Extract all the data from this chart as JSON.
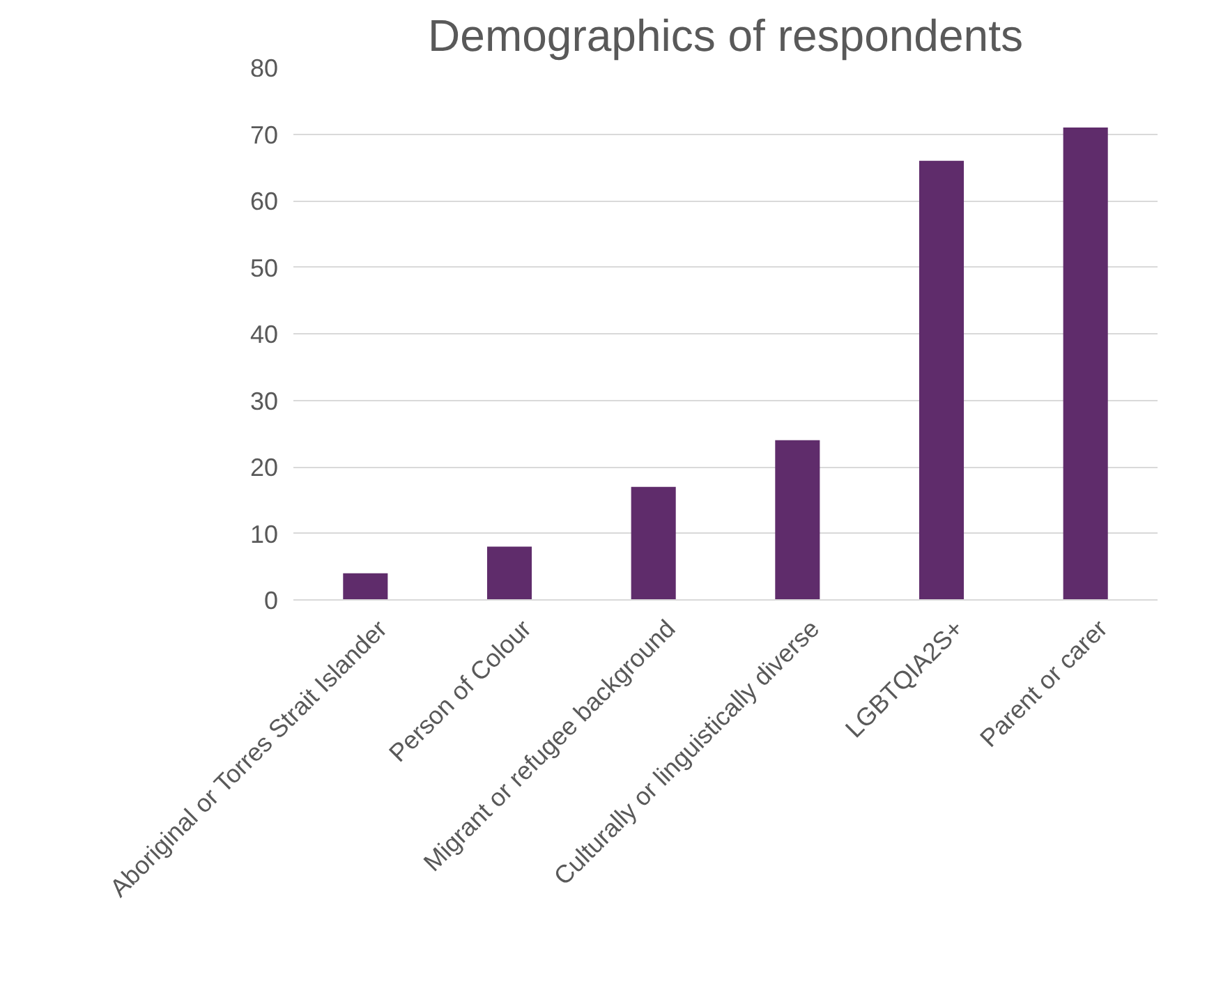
{
  "chart_data": {
    "type": "bar",
    "title": "Demographics of respondents",
    "categories": [
      "Aboriginal or Torres Strait Islander",
      "Person of Colour",
      "Migrant or refugee background",
      "Culturally or linguistically diverse",
      "LGBTQIA2S+",
      "Parent or carer"
    ],
    "values": [
      4,
      8,
      17,
      24,
      66,
      71
    ],
    "color": "#5f2c6b",
    "ylim": [
      0,
      80
    ],
    "yticks": [
      0,
      10,
      20,
      30,
      40,
      50,
      60,
      70,
      80
    ],
    "grid": "y"
  }
}
